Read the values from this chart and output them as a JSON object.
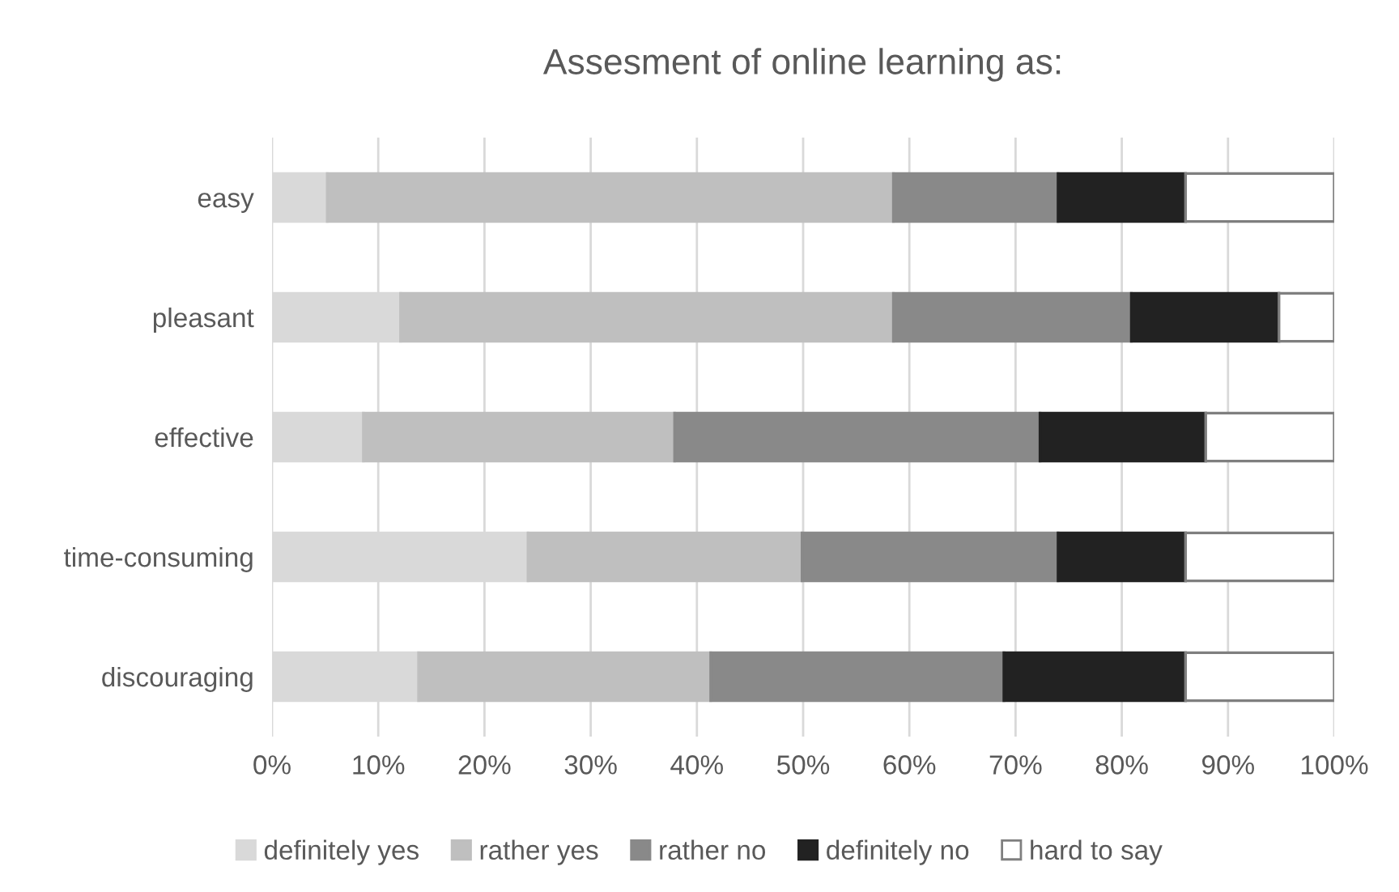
{
  "chart_data": {
    "type": "bar",
    "title": "Assesment of online learning as:",
    "orientation": "horizontal",
    "stacked": true,
    "categories": [
      "easy",
      "pleasant",
      "effective",
      "time-consuming",
      "discouraging"
    ],
    "series": [
      {
        "name": "definitely yes",
        "color": "#d9d9d9",
        "values": [
          5.2,
          12.1,
          8.6,
          24.1,
          13.8
        ]
      },
      {
        "name": "rather yes",
        "color": "#bfbfbf",
        "values": [
          53.3,
          46.4,
          29.3,
          25.8,
          27.5
        ]
      },
      {
        "name": "rather no",
        "color": "#898989",
        "values": [
          15.5,
          22.4,
          34.4,
          24.1,
          27.6
        ]
      },
      {
        "name": "definitely no",
        "color": "#222222",
        "values": [
          12.0,
          13.9,
          15.6,
          12.0,
          17.1
        ]
      },
      {
        "name": "hard to say",
        "color": "#ffffff",
        "values": [
          14.0,
          5.2,
          12.1,
          14.0,
          14.0
        ]
      }
    ],
    "xlim": [
      0,
      100
    ],
    "xticks": [
      {
        "value": 0,
        "label": "0%"
      },
      {
        "value": 10,
        "label": "10%"
      },
      {
        "value": 20,
        "label": "20%"
      },
      {
        "value": 30,
        "label": "30%"
      },
      {
        "value": 40,
        "label": "40%"
      },
      {
        "value": 50,
        "label": "50%"
      },
      {
        "value": 60,
        "label": "60%"
      },
      {
        "value": 70,
        "label": "70%"
      },
      {
        "value": 80,
        "label": "80%"
      },
      {
        "value": 90,
        "label": "90%"
      },
      {
        "value": 100,
        "label": "100%"
      }
    ],
    "grid": "x",
    "legend": "bottom"
  }
}
